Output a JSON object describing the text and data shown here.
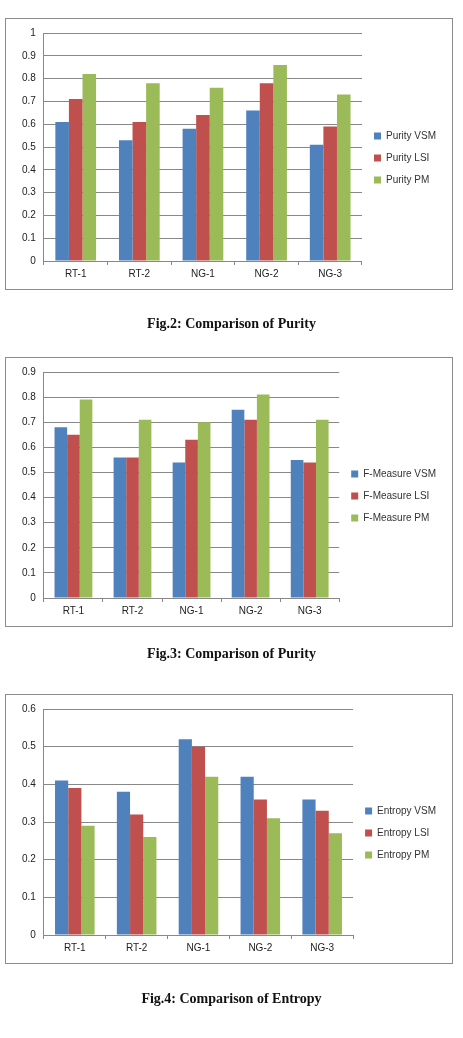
{
  "chart_data": [
    {
      "type": "bar",
      "title": "Fig.2: Comparison of Purity",
      "categories": [
        "RT-1",
        "RT-2",
        "NG-1",
        "NG-2",
        "NG-3"
      ],
      "series": [
        {
          "name": "Purity VSM",
          "color": "#4f81bd",
          "values": [
            0.61,
            0.53,
            0.58,
            0.66,
            0.51
          ]
        },
        {
          "name": "Purity LSI",
          "color": "#c0504d",
          "values": [
            0.71,
            0.61,
            0.64,
            0.78,
            0.59
          ]
        },
        {
          "name": "Purity PM",
          "color": "#9bbb59",
          "values": [
            0.82,
            0.78,
            0.76,
            0.86,
            0.73
          ]
        }
      ],
      "ylim": [
        0,
        1
      ],
      "yticks": [
        0,
        0.1,
        0.2,
        0.3,
        0.4,
        0.5,
        0.6,
        0.7,
        0.8,
        0.9,
        1
      ],
      "grid": "y",
      "legend": "right"
    },
    {
      "type": "bar",
      "title": "Fig.3: Comparison of Purity",
      "categories": [
        "RT-1",
        "RT-2",
        "NG-1",
        "NG-2",
        "NG-3"
      ],
      "series": [
        {
          "name": "F-Measure VSM",
          "color": "#4f81bd",
          "values": [
            0.68,
            0.56,
            0.54,
            0.75,
            0.55
          ]
        },
        {
          "name": "F-Measure LSI",
          "color": "#c0504d",
          "values": [
            0.65,
            0.56,
            0.63,
            0.71,
            0.54
          ]
        },
        {
          "name": "F-Measure PM",
          "color": "#9bbb59",
          "values": [
            0.79,
            0.71,
            0.7,
            0.81,
            0.71
          ]
        }
      ],
      "ylim": [
        0,
        0.9
      ],
      "yticks": [
        0,
        0.1,
        0.2,
        0.3,
        0.4,
        0.5,
        0.6,
        0.7,
        0.8,
        0.9
      ],
      "grid": "y",
      "legend": "right"
    },
    {
      "type": "bar",
      "title": "Fig.4: Comparison of Entropy",
      "categories": [
        "RT-1",
        "RT-2",
        "NG-1",
        "NG-2",
        "NG-3"
      ],
      "series": [
        {
          "name": "Entropy VSM",
          "color": "#4f81bd",
          "values": [
            0.41,
            0.38,
            0.52,
            0.42,
            0.36
          ]
        },
        {
          "name": "Entropy LSI",
          "color": "#c0504d",
          "values": [
            0.39,
            0.32,
            0.5,
            0.36,
            0.33
          ]
        },
        {
          "name": "Entropy PM",
          "color": "#9bbb59",
          "values": [
            0.29,
            0.26,
            0.42,
            0.31,
            0.27
          ]
        }
      ],
      "ylim": [
        0,
        0.6
      ],
      "yticks": [
        0,
        0.1,
        0.2,
        0.3,
        0.4,
        0.5,
        0.6
      ],
      "grid": "y",
      "legend": "right"
    }
  ]
}
